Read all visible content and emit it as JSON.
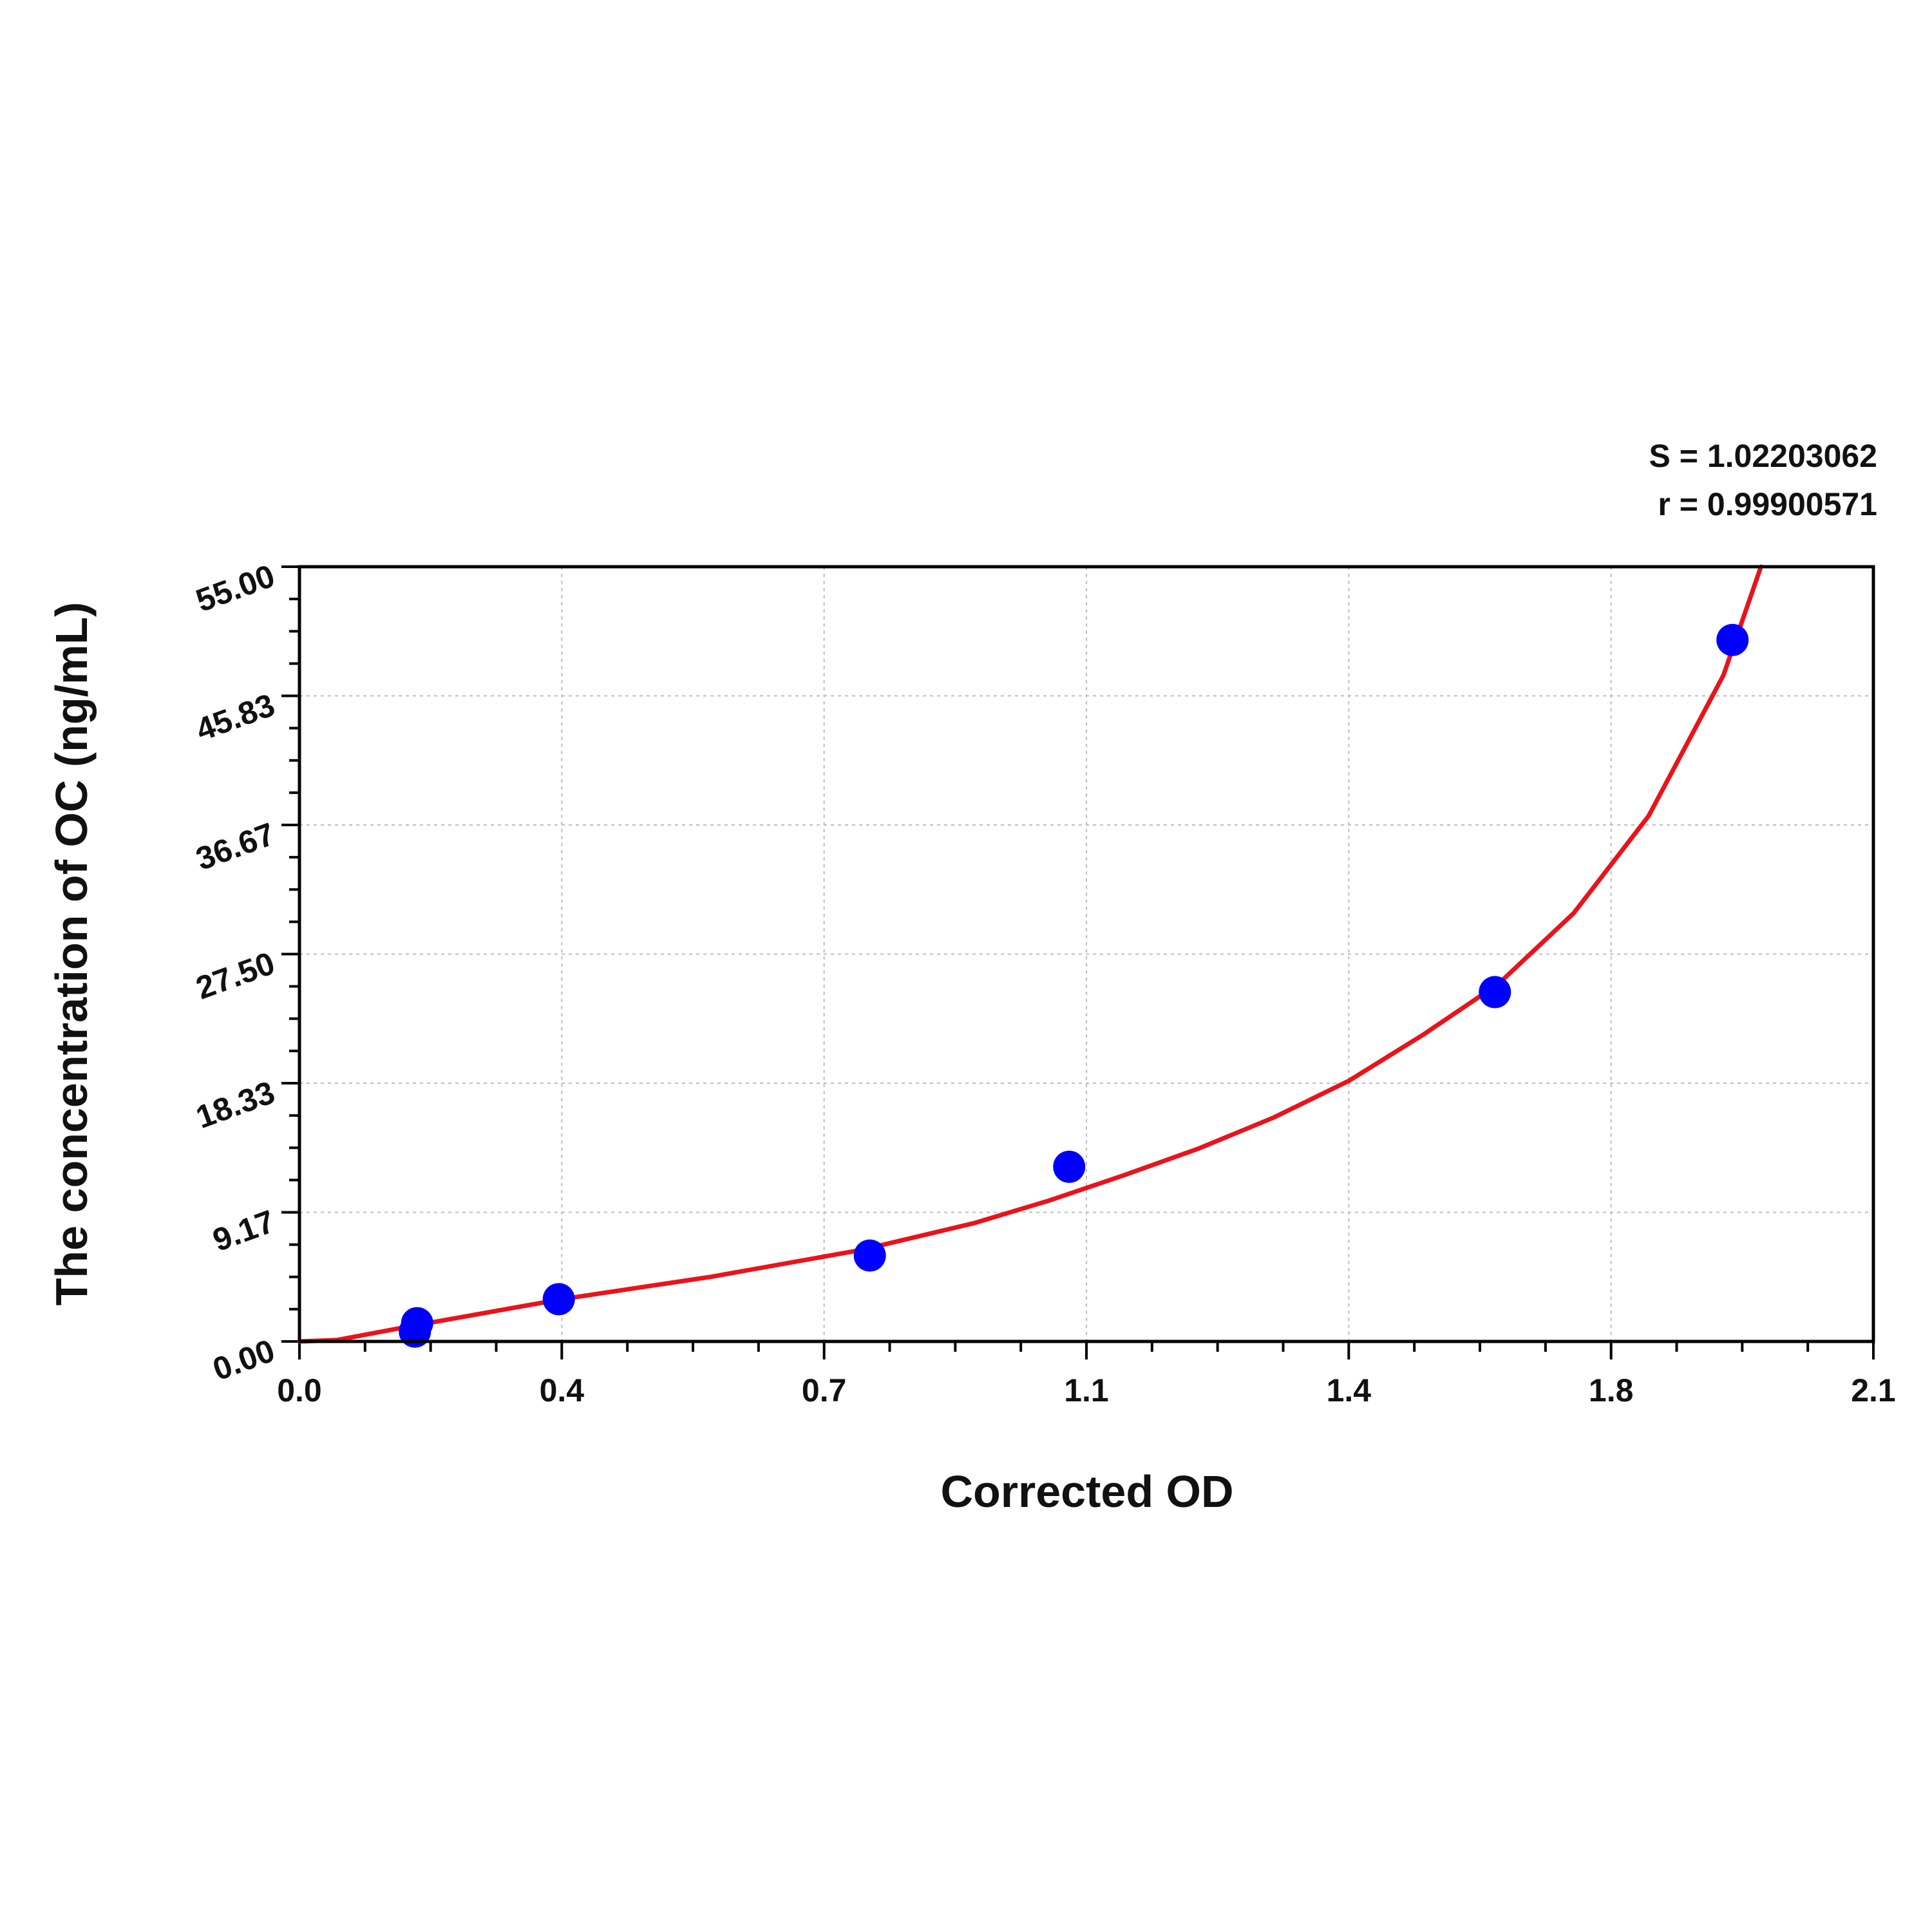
{
  "chart_data": {
    "type": "scatter",
    "title": "",
    "xlabel": "Corrected OD",
    "ylabel": "The concentration of OC (ng/mL)",
    "xlim": [
      0.0,
      2.1
    ],
    "ylim": [
      0.0,
      55.0
    ],
    "x_ticks": [
      "0.0",
      "0.4",
      "0.7",
      "1.1",
      "1.4",
      "1.8",
      "2.1"
    ],
    "y_ticks": [
      "0.00",
      "9.17",
      "18.33",
      "27.50",
      "36.67",
      "45.83",
      "55.00"
    ],
    "grid": true,
    "stats": {
      "s_label": "S = 1.02203062",
      "r_label": "r = 0.99900571"
    },
    "series": [
      {
        "kind": "points",
        "color": "#0000ff",
        "points": [
          {
            "x": 0.154,
            "y": 0.7
          },
          {
            "x": 0.157,
            "y": 1.3
          },
          {
            "x": 0.346,
            "y": 3.0
          },
          {
            "x": 0.761,
            "y": 6.1
          },
          {
            "x": 1.027,
            "y": 12.4
          },
          {
            "x": 1.595,
            "y": 24.8
          },
          {
            "x": 1.912,
            "y": 49.8
          }
        ]
      },
      {
        "kind": "fit-curve",
        "color": "#e8141b",
        "points": [
          {
            "x": 0.0,
            "y": 0.0
          },
          {
            "x": 0.05,
            "y": 0.1
          },
          {
            "x": 0.15,
            "y": 1.1
          },
          {
            "x": 0.35,
            "y": 3.0
          },
          {
            "x": 0.55,
            "y": 4.6
          },
          {
            "x": 0.75,
            "y": 6.5
          },
          {
            "x": 0.9,
            "y": 8.4
          },
          {
            "x": 1.0,
            "y": 10.0
          },
          {
            "x": 1.1,
            "y": 11.8
          },
          {
            "x": 1.2,
            "y": 13.7
          },
          {
            "x": 1.3,
            "y": 15.9
          },
          {
            "x": 1.4,
            "y": 18.5
          },
          {
            "x": 1.5,
            "y": 21.8
          },
          {
            "x": 1.6,
            "y": 25.4
          },
          {
            "x": 1.7,
            "y": 30.4
          },
          {
            "x": 1.8,
            "y": 37.3
          },
          {
            "x": 1.9,
            "y": 47.3
          },
          {
            "x": 1.95,
            "y": 55.0
          }
        ]
      }
    ]
  }
}
